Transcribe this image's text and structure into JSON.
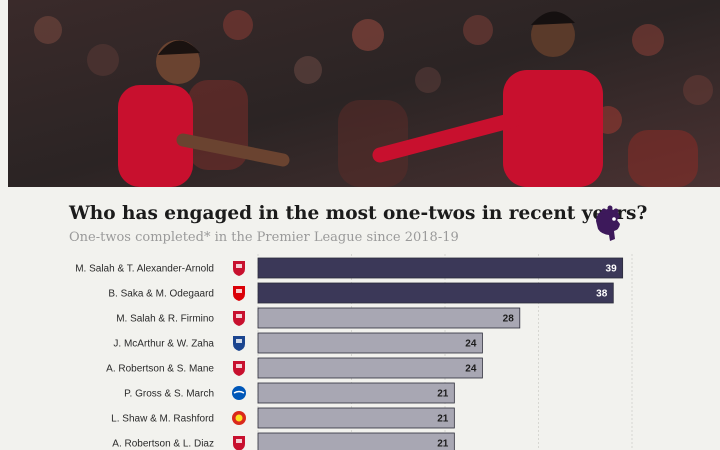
{
  "header": {
    "title": "Who has engaged in the most one-twos in recent years?",
    "subtitle": "One-twos completed* in the Premier League since 2018-19"
  },
  "colors": {
    "highlight_bar": "#3b3858",
    "normal_bar": "#a8a7b3",
    "liverpool": "#c8102e",
    "arsenal": "#db0007",
    "crystal_palace": "#1b458f",
    "brighton": "#0057b8",
    "man_utd": "#da291c",
    "premier_league": "#3d195b"
  },
  "chart_data": {
    "type": "bar",
    "orientation": "horizontal",
    "title": "Who has engaged in the most one-twos in recent years?",
    "subtitle": "One-twos completed* in the Premier League since 2018-19",
    "categories": [
      "M. Salah & T. Alexander-Arnold",
      "B. Saka & M. Odegaard",
      "M. Salah & R. Firmino",
      "J. McArthur & W. Zaha",
      "A. Robertson & S. Mane",
      "P. Gross & S. March",
      "L. Shaw & M. Rashford",
      "A. Robertson & L. Diaz"
    ],
    "values": [
      39,
      38,
      28,
      24,
      24,
      21,
      21,
      21
    ],
    "clubs": [
      "liverpool",
      "arsenal",
      "liverpool",
      "crystal_palace",
      "liverpool",
      "brighton",
      "man_utd",
      "liverpool"
    ],
    "highlighted": [
      true,
      true,
      false,
      false,
      false,
      false,
      false,
      false
    ],
    "xlim": [
      0,
      40
    ],
    "grid": true
  }
}
